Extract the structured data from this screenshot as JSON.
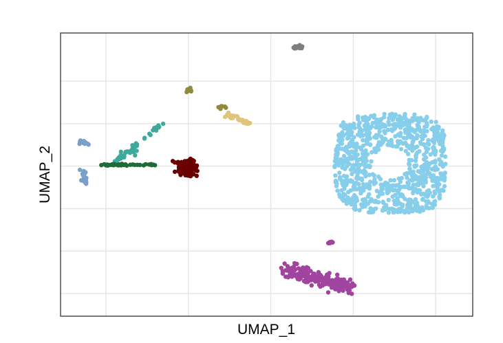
{
  "chart_data": {
    "type": "scatter",
    "title": "",
    "xlabel": "UMAP_1",
    "ylabel": "UMAP_2",
    "xlim": [
      0,
      10
    ],
    "ylim": [
      0,
      10
    ],
    "grid": true,
    "x_gridlines": [
      1.1,
      3.1,
      5.1,
      7.1,
      9.1
    ],
    "y_gridlines": [
      0.8,
      2.3,
      3.8,
      5.3,
      6.8,
      8.3
    ],
    "legend": "none",
    "clusters": [
      {
        "color": "#87CEEB",
        "shape": "ring",
        "center": [
          8.0,
          5.4
        ],
        "rx": 1.35,
        "ry": 1.75,
        "hole_rx": 0.45,
        "hole_ry": 0.6,
        "n": 900
      },
      {
        "color": "#A0449F",
        "shape": "streak",
        "from": [
          5.5,
          1.6
        ],
        "to": [
          7.0,
          1.0
        ],
        "spread": 0.22,
        "n": 220
      },
      {
        "color": "#6A0000",
        "shape": "blob",
        "center": [
          3.05,
          5.25
        ],
        "rx": 0.25,
        "ry": 0.27,
        "n": 130
      },
      {
        "color": "#E0C47A",
        "shape": "streak",
        "from": [
          4.0,
          7.1
        ],
        "to": [
          4.65,
          6.8
        ],
        "spread": 0.07,
        "n": 30
      },
      {
        "color": "#7B9FCB",
        "shape": "streak",
        "from": [
          0.55,
          5.1
        ],
        "to": [
          0.6,
          4.7
        ],
        "spread": 0.06,
        "n": 25
      },
      {
        "color": "#7B9FCB",
        "shape": "streak",
        "from": [
          0.45,
          6.15
        ],
        "to": [
          0.7,
          6.1
        ],
        "spread": 0.06,
        "n": 12
      },
      {
        "color": "#3FA99B",
        "shape": "streak",
        "from": [
          1.3,
          5.4
        ],
        "to": [
          2.45,
          6.8
        ],
        "spread": 0.05,
        "n": 40
      },
      {
        "color": "#3FA99B",
        "shape": "streak",
        "from": [
          1.5,
          5.8
        ],
        "to": [
          1.8,
          5.8
        ],
        "spread": 0.06,
        "n": 15
      },
      {
        "color": "#1E6B35",
        "shape": "streak",
        "from": [
          1.0,
          5.35
        ],
        "to": [
          2.3,
          5.35
        ],
        "spread": 0.03,
        "n": 35
      },
      {
        "color": "#7F7F7F",
        "shape": "blob",
        "center": [
          5.75,
          9.5
        ],
        "rx": 0.12,
        "ry": 0.06,
        "n": 20
      },
      {
        "color": "#8F8A3A",
        "shape": "blob",
        "center": [
          3.1,
          7.95
        ],
        "rx": 0.08,
        "ry": 0.07,
        "n": 12
      },
      {
        "color": "#8F8A3A",
        "shape": "streak",
        "from": [
          3.8,
          7.4
        ],
        "to": [
          4.05,
          7.4
        ],
        "spread": 0.05,
        "n": 8
      },
      {
        "color": "#A0449F",
        "shape": "blob",
        "center": [
          6.55,
          2.6
        ],
        "rx": 0.08,
        "ry": 0.06,
        "n": 8
      }
    ]
  }
}
